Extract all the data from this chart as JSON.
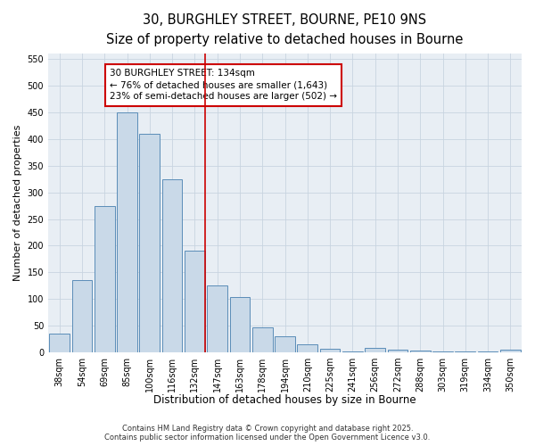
{
  "title_line1": "30, BURGHLEY STREET, BOURNE, PE10 9NS",
  "title_line2": "Size of property relative to detached houses in Bourne",
  "xlabel": "Distribution of detached houses by size in Bourne",
  "ylabel": "Number of detached properties",
  "bar_labels": [
    "38sqm",
    "54sqm",
    "69sqm",
    "85sqm",
    "100sqm",
    "116sqm",
    "132sqm",
    "147sqm",
    "163sqm",
    "178sqm",
    "194sqm",
    "210sqm",
    "225sqm",
    "241sqm",
    "256sqm",
    "272sqm",
    "288sqm",
    "303sqm",
    "319sqm",
    "334sqm",
    "350sqm"
  ],
  "bar_values": [
    35,
    135,
    275,
    450,
    410,
    325,
    190,
    125,
    103,
    46,
    30,
    15,
    6,
    1,
    8,
    5,
    3,
    1,
    1,
    1,
    5
  ],
  "bar_color": "#c9d9e8",
  "bar_edge_color": "#5b8db8",
  "vline_x_index": 6,
  "vline_color": "#cc0000",
  "annotation_line1": "30 BURGHLEY STREET: 134sqm",
  "annotation_line2": "← 76% of detached houses are smaller (1,643)",
  "annotation_line3": "23% of semi-detached houses are larger (502) →",
  "annotation_box_color": "#cc0000",
  "annotation_text_color": "#000000",
  "ylim": [
    0,
    560
  ],
  "yticks": [
    0,
    50,
    100,
    150,
    200,
    250,
    300,
    350,
    400,
    450,
    500,
    550
  ],
  "grid_color": "#c8d4e0",
  "background_color": "#e8eef4",
  "footer_text": "Contains HM Land Registry data © Crown copyright and database right 2025.\nContains public sector information licensed under the Open Government Licence v3.0.",
  "title_fontsize": 10.5,
  "subtitle_fontsize": 9.5,
  "xlabel_fontsize": 8.5,
  "ylabel_fontsize": 8,
  "tick_fontsize": 7,
  "annotation_fontsize": 7.5,
  "footer_fontsize": 6
}
